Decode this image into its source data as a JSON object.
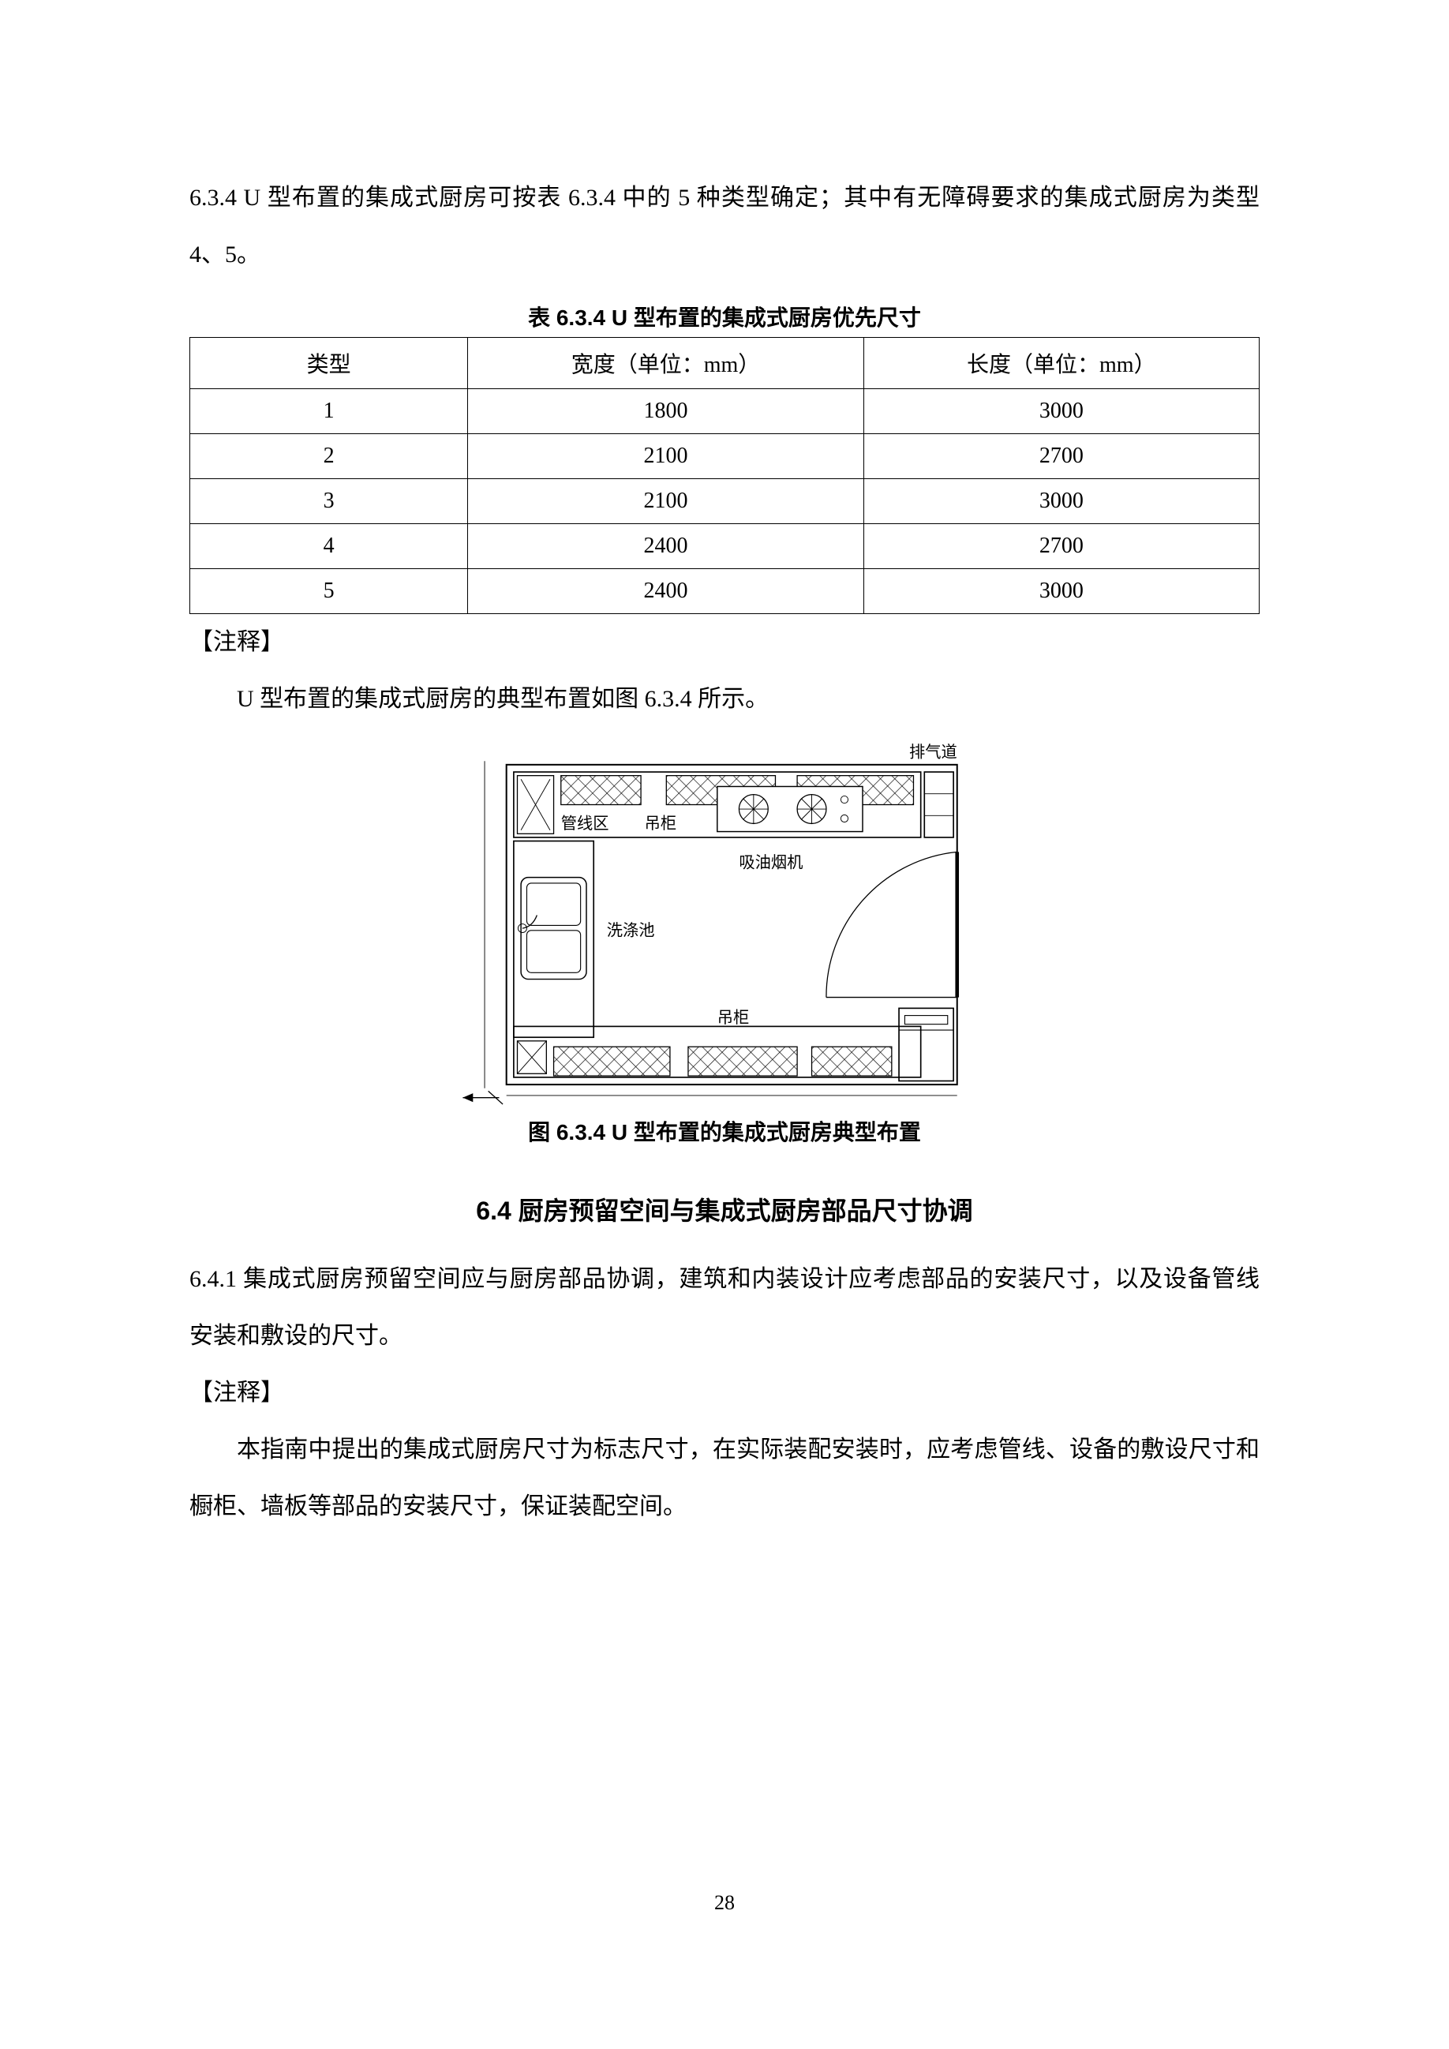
{
  "para634": "6.3.4 U 型布置的集成式厨房可按表 6.3.4 中的 5 种类型确定；其中有无障碍要求的集成式厨房为类型 4、5。",
  "tableCaption": "表 6.3.4 U 型布置的集成式厨房优先尺寸",
  "table": {
    "columns": [
      "类型",
      "宽度（单位：mm）",
      "长度（单位：mm）"
    ],
    "rows": [
      [
        "1",
        "1800",
        "3000"
      ],
      [
        "2",
        "2100",
        "2700"
      ],
      [
        "3",
        "2100",
        "3000"
      ],
      [
        "4",
        "2400",
        "2700"
      ],
      [
        "5",
        "2400",
        "3000"
      ]
    ],
    "colWidthsPct": [
      26,
      37,
      37
    ],
    "border_color": "#000000",
    "cell_fontsize": 28
  },
  "noteLabel1": "【注释】",
  "noteText1": "U 型布置的集成式厨房的典型布置如图 6.3.4 所示。",
  "figure": {
    "caption": "图 6.3.4 U 型布置的集成式厨房典型布置",
    "widthPx": 700,
    "labels": {
      "exhaust": "排气道",
      "pipeZone": "管线区",
      "upperCabinet": "吊柜",
      "hood": "吸油烟机",
      "sink": "洗涤池",
      "upperCabinet2": "吊柜"
    },
    "colors": {
      "stroke": "#000000",
      "fill_bg": "#ffffff",
      "hatch": "#000000"
    }
  },
  "sectionHeading": "6.4  厨房预留空间与集成式厨房部品尺寸协调",
  "para641": "6.4.1 集成式厨房预留空间应与厨房部品协调，建筑和内装设计应考虑部品的安装尺寸，以及设备管线安装和敷设的尺寸。",
  "noteLabel2": "【注释】",
  "noteText2": "本指南中提出的集成式厨房尺寸为标志尺寸，在实际装配安装时，应考虑管线、设备的敷设尺寸和橱柜、墙板等部品的安装尺寸，保证装配空间。",
  "pageNumber": "28"
}
